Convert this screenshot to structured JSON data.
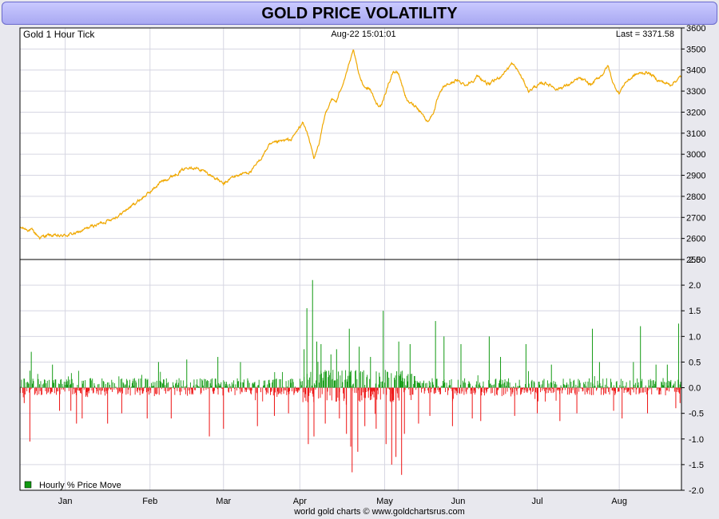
{
  "title": "GOLD PRICE VOLATILITY",
  "footer": "world gold charts © www.goldchartsrus.com",
  "colors": {
    "gold_line": "#f0a800",
    "positive": "#119911",
    "negative": "#ee1111",
    "grid": "#d6d6e2",
    "title_bg": "#b8b8f5"
  },
  "chart_data": [
    {
      "type": "line",
      "name": "price-panel",
      "label_left": "Gold 1 Hour Tick",
      "label_center": "Aug-22  15:01:01",
      "label_right": "Last = 3371.58",
      "ylim": [
        2500,
        3600
      ],
      "yticks": [
        "2500",
        "2600",
        "2700",
        "2800",
        "2900",
        "3000",
        "3100",
        "3200",
        "3300",
        "3400",
        "3500",
        "3600"
      ],
      "xlim": [
        0,
        234
      ],
      "months": [
        "Jan",
        "Feb",
        "Mar",
        "Apr",
        "May",
        "Jun",
        "Jul",
        "Aug"
      ],
      "month_positions": [
        16,
        46,
        72,
        99,
        129,
        155,
        183,
        212
      ],
      "series": [
        {
          "name": "Gold 1 Hour Tick",
          "x": [
            0,
            4,
            7,
            10,
            14,
            20,
            25,
            30,
            35,
            40,
            46,
            50,
            55,
            60,
            65,
            70,
            72,
            75,
            78,
            82,
            85,
            88,
            92,
            96,
            99,
            100,
            102,
            104,
            106,
            108,
            110,
            112,
            114,
            116,
            118,
            120,
            122,
            124,
            126,
            128,
            130,
            132,
            134,
            137,
            140,
            142,
            144,
            146,
            148,
            150,
            154,
            158,
            162,
            166,
            170,
            172,
            174,
            176,
            178,
            180,
            182,
            186,
            190,
            194,
            198,
            202,
            206,
            208,
            210,
            212,
            214,
            218,
            222,
            226,
            230,
            234
          ],
          "y": [
            2650,
            2640,
            2605,
            2615,
            2610,
            2625,
            2655,
            2680,
            2710,
            2760,
            2820,
            2870,
            2905,
            2945,
            2920,
            2880,
            2855,
            2890,
            2905,
            2920,
            2975,
            3040,
            3060,
            3070,
            3130,
            3150,
            3090,
            2975,
            3060,
            3190,
            3260,
            3250,
            3330,
            3410,
            3490,
            3370,
            3320,
            3310,
            3240,
            3230,
            3320,
            3395,
            3380,
            3250,
            3230,
            3200,
            3155,
            3190,
            3270,
            3320,
            3350,
            3330,
            3370,
            3330,
            3370,
            3400,
            3430,
            3400,
            3350,
            3300,
            3320,
            3340,
            3310,
            3330,
            3360,
            3330,
            3380,
            3420,
            3330,
            3290,
            3340,
            3380,
            3390,
            3350,
            3330,
            3370
          ]
        }
      ]
    },
    {
      "type": "bar",
      "name": "volatility-panel",
      "label": "Hourly % Price Move",
      "ylim": [
        -2.0,
        2.5
      ],
      "yticks": [
        "-2.0",
        "-1.5",
        "-1.0",
        "-0.5",
        "0.0",
        "0.5",
        "1.0",
        "1.5",
        "2.0",
        "2.5"
      ],
      "positive_color": "#119911",
      "negative_color": "#ee1111",
      "spikes": [
        {
          "x": 1.5,
          "value": -0.3
        },
        {
          "x": 3.5,
          "value": -1.05
        },
        {
          "x": 4.0,
          "value": 0.7
        },
        {
          "x": 11.5,
          "value": 0.45
        },
        {
          "x": 14.0,
          "value": -0.45
        },
        {
          "x": 18.0,
          "value": -0.45
        },
        {
          "x": 20.0,
          "value": -0.7
        },
        {
          "x": 22.0,
          "value": -0.6
        },
        {
          "x": 31.0,
          "value": -0.7
        },
        {
          "x": 36.0,
          "value": -0.5
        },
        {
          "x": 45.0,
          "value": -0.6
        },
        {
          "x": 49.0,
          "value": 0.5
        },
        {
          "x": 53.5,
          "value": -0.6
        },
        {
          "x": 59.0,
          "value": 0.55
        },
        {
          "x": 67.0,
          "value": -0.95
        },
        {
          "x": 70.0,
          "value": 0.6
        },
        {
          "x": 72.0,
          "value": -0.8
        },
        {
          "x": 78.0,
          "value": 0.5
        },
        {
          "x": 84.0,
          "value": -0.75
        },
        {
          "x": 90.0,
          "value": -0.55
        },
        {
          "x": 95.0,
          "value": -0.5
        },
        {
          "x": 100.5,
          "value": 0.75
        },
        {
          "x": 101.5,
          "value": 1.55
        },
        {
          "x": 102.0,
          "value": -1.1
        },
        {
          "x": 103.5,
          "value": 2.1
        },
        {
          "x": 104.0,
          "value": -0.95
        },
        {
          "x": 105.0,
          "value": 0.9
        },
        {
          "x": 106.5,
          "value": 0.85
        },
        {
          "x": 108.0,
          "value": -0.7
        },
        {
          "x": 110.0,
          "value": 0.65
        },
        {
          "x": 112.0,
          "value": 0.75
        },
        {
          "x": 113.0,
          "value": -0.6
        },
        {
          "x": 115.5,
          "value": -0.9
        },
        {
          "x": 116.5,
          "value": 1.15
        },
        {
          "x": 117.0,
          "value": -1.15
        },
        {
          "x": 117.5,
          "value": -1.65
        },
        {
          "x": 119.5,
          "value": -1.25
        },
        {
          "x": 120.0,
          "value": 0.8
        },
        {
          "x": 122.0,
          "value": -0.75
        },
        {
          "x": 124.0,
          "value": 0.6
        },
        {
          "x": 126.0,
          "value": -0.8
        },
        {
          "x": 128.5,
          "value": 1.5
        },
        {
          "x": 129.5,
          "value": -1.1
        },
        {
          "x": 131.5,
          "value": -1.5
        },
        {
          "x": 133.0,
          "value": -1.35
        },
        {
          "x": 134.0,
          "value": 0.9
        },
        {
          "x": 135.0,
          "value": -1.7
        },
        {
          "x": 136.0,
          "value": -0.9
        },
        {
          "x": 138.0,
          "value": 0.85
        },
        {
          "x": 141.0,
          "value": -0.7
        },
        {
          "x": 145.0,
          "value": -0.55
        },
        {
          "x": 147.0,
          "value": 1.3
        },
        {
          "x": 150.0,
          "value": 1.0
        },
        {
          "x": 153.0,
          "value": -0.75
        },
        {
          "x": 156.0,
          "value": 0.85
        },
        {
          "x": 160.0,
          "value": -0.6
        },
        {
          "x": 163.0,
          "value": -0.65
        },
        {
          "x": 166.0,
          "value": 1.0
        },
        {
          "x": 170.0,
          "value": 0.6
        },
        {
          "x": 175.0,
          "value": -0.55
        },
        {
          "x": 179.0,
          "value": 0.85
        },
        {
          "x": 183.0,
          "value": -0.5
        },
        {
          "x": 188.0,
          "value": 0.45
        },
        {
          "x": 191.0,
          "value": -0.65
        },
        {
          "x": 197.0,
          "value": -0.5
        },
        {
          "x": 202.5,
          "value": 1.15
        },
        {
          "x": 205.0,
          "value": 0.5
        },
        {
          "x": 210.0,
          "value": -0.45
        },
        {
          "x": 213.0,
          "value": -0.6
        },
        {
          "x": 217.0,
          "value": 0.5
        },
        {
          "x": 219.5,
          "value": 1.2
        },
        {
          "x": 222.0,
          "value": -0.5
        },
        {
          "x": 225.0,
          "value": 0.45
        },
        {
          "x": 229.0,
          "value": 0.45
        },
        {
          "x": 232.0,
          "value": -0.4
        },
        {
          "x": 233.0,
          "value": 1.25
        },
        {
          "x": 233.5,
          "value": -0.3
        }
      ]
    }
  ]
}
